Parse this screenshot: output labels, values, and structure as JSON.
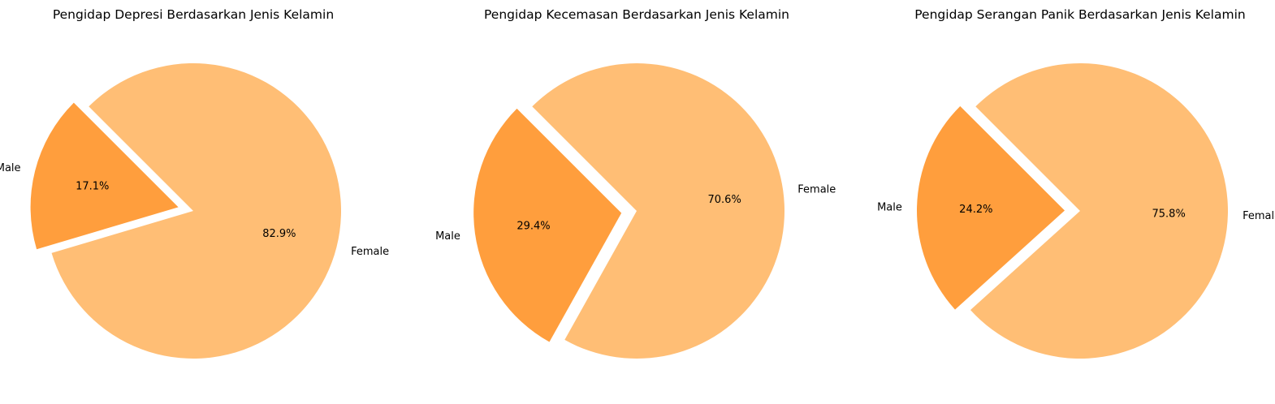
{
  "chart_data": [
    {
      "type": "pie",
      "title": "Pengidap Depresi Berdasarkan Jenis Kelamin",
      "slices": [
        {
          "label": "Male",
          "value": 17.1,
          "pct_label": "17.1%",
          "color": "#ff9e3d",
          "exploded": true
        },
        {
          "label": "Female",
          "value": 82.9,
          "pct_label": "82.9%",
          "color": "#ffbe75",
          "exploded": false
        }
      ]
    },
    {
      "type": "pie",
      "title": "Pengidap Kecemasan Berdasarkan Jenis Kelamin",
      "slices": [
        {
          "label": "Male",
          "value": 29.4,
          "pct_label": "29.4%",
          "color": "#ff9e3d",
          "exploded": true
        },
        {
          "label": "Female",
          "value": 70.6,
          "pct_label": "70.6%",
          "color": "#ffbe75",
          "exploded": false
        }
      ]
    },
    {
      "type": "pie",
      "title": "Pengidap Serangan Panik Berdasarkan Jenis Kelamin",
      "slices": [
        {
          "label": "Male",
          "value": 24.2,
          "pct_label": "24.2%",
          "color": "#ff9e3d",
          "exploded": true
        },
        {
          "label": "Female",
          "value": 75.8,
          "pct_label": "75.8%",
          "color": "#ffbe75",
          "exploded": false
        }
      ]
    }
  ]
}
